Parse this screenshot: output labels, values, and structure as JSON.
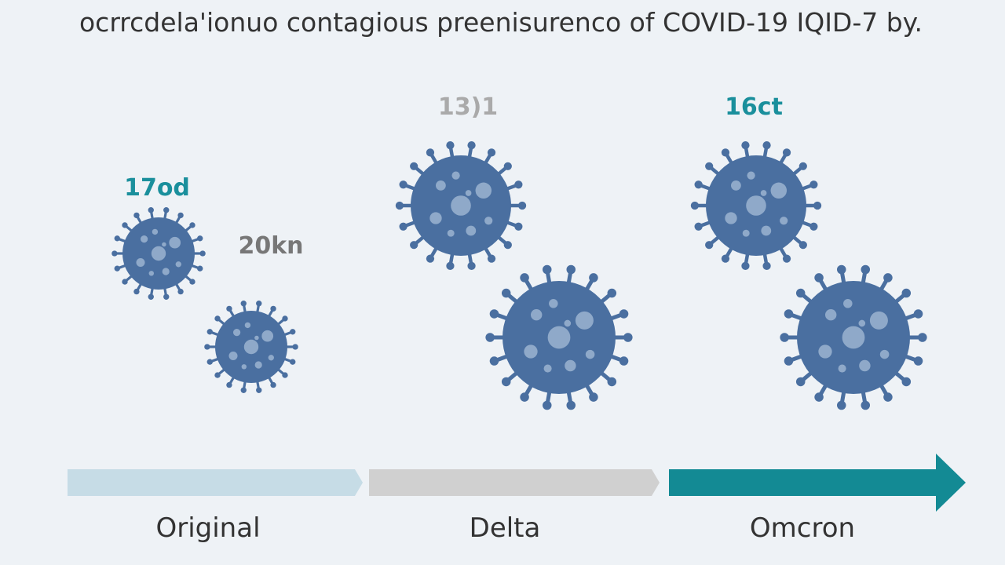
{
  "title": "ocrrcdela'ionuo contagious preenisurenco of COVID-19 IQID-7 by.",
  "annotations": [
    "17od",
    "20kn",
    "13)1",
    "16ct"
  ],
  "stages": [
    "Original",
    "Delta",
    "Omcron"
  ]
}
